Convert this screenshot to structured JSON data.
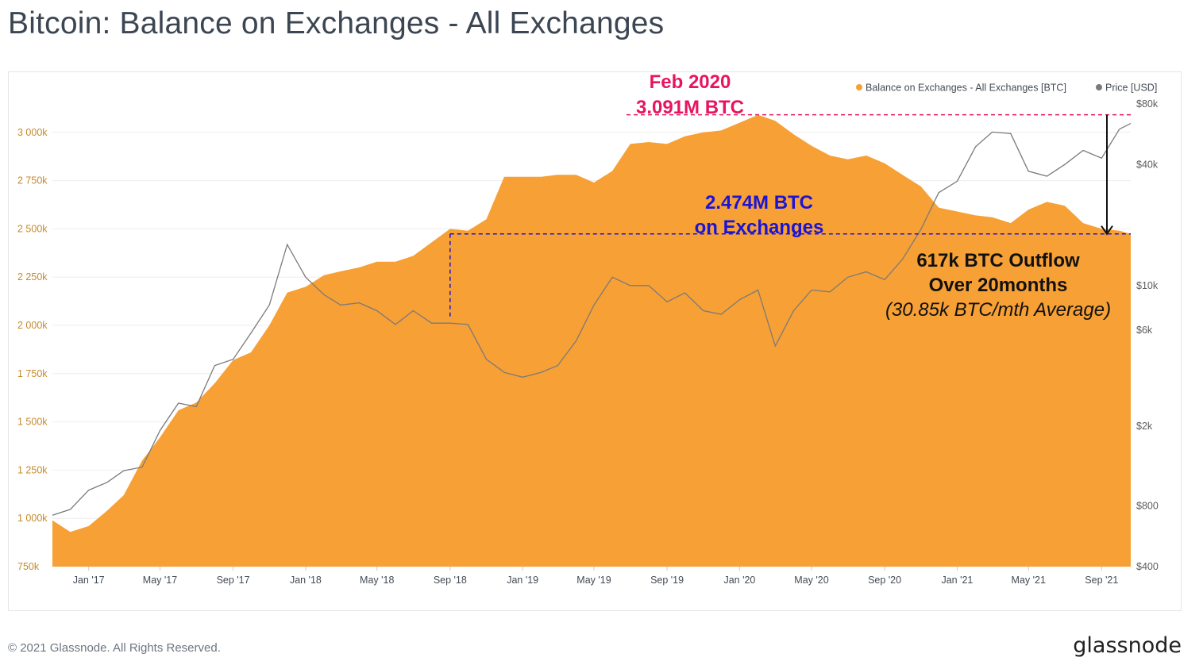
{
  "title": "Bitcoin: Balance on Exchanges - All Exchanges",
  "footer": {
    "copyright": "© 2021 Glassnode. All Rights Reserved.",
    "brand": "glassnode"
  },
  "watermark": "glassnode",
  "colors": {
    "balance": "#f7a035",
    "price": "#7a7a7a",
    "left_tick": "#c48a2a",
    "right_tick": "#5c5c5c",
    "peak_annotation": "#e8145f",
    "level_annotation": "#1a14d6",
    "outflow_annotation": "#111111"
  },
  "chart_data": {
    "type": "area",
    "legend": [
      {
        "name": "Balance on Exchanges - All Exchanges [BTC]",
        "color": "#f7a035"
      },
      {
        "name": "Price [USD]",
        "color": "#7a7a7a"
      }
    ],
    "legend_position": "top-right",
    "x_ticks": [
      "Jan '17",
      "May '17",
      "Sep '17",
      "Jan '18",
      "May '18",
      "Sep '18",
      "Jan '19",
      "May '19",
      "Sep '19",
      "Jan '20",
      "May '20",
      "Sep '20",
      "Jan '21",
      "May '21",
      "Sep '21"
    ],
    "x_range": [
      "2016-11-01",
      "2021-10-20"
    ],
    "y_left": {
      "ticks": [
        "750k",
        "1 000k",
        "1 250k",
        "1 500k",
        "1 750k",
        "2 000k",
        "2 250k",
        "2 500k",
        "2 750k",
        "3 000k"
      ],
      "range": [
        750000,
        3250000
      ]
    },
    "y_right": {
      "scale": "log",
      "ticks": [
        "$400",
        "$800",
        "$2k",
        "$6k",
        "$10k",
        "$40k",
        "$80k"
      ],
      "range": [
        400,
        80000
      ]
    },
    "series": [
      {
        "name": "Balance on Exchanges - All Exchanges [BTC]",
        "axis": "left",
        "points": [
          [
            "2016-11-01",
            990000
          ],
          [
            "2016-12-01",
            930000
          ],
          [
            "2017-01-01",
            960000
          ],
          [
            "2017-02-01",
            1040000
          ],
          [
            "2017-03-01",
            1120000
          ],
          [
            "2017-04-01",
            1300000
          ],
          [
            "2017-05-01",
            1420000
          ],
          [
            "2017-06-01",
            1560000
          ],
          [
            "2017-07-01",
            1600000
          ],
          [
            "2017-08-01",
            1700000
          ],
          [
            "2017-09-01",
            1820000
          ],
          [
            "2017-10-01",
            1860000
          ],
          [
            "2017-11-01",
            2000000
          ],
          [
            "2017-12-01",
            2170000
          ],
          [
            "2018-01-01",
            2200000
          ],
          [
            "2018-02-01",
            2260000
          ],
          [
            "2018-03-01",
            2280000
          ],
          [
            "2018-04-01",
            2300000
          ],
          [
            "2018-05-01",
            2330000
          ],
          [
            "2018-06-01",
            2330000
          ],
          [
            "2018-07-01",
            2360000
          ],
          [
            "2018-08-01",
            2430000
          ],
          [
            "2018-09-01",
            2500000
          ],
          [
            "2018-10-01",
            2490000
          ],
          [
            "2018-11-01",
            2550000
          ],
          [
            "2018-12-01",
            2770000
          ],
          [
            "2019-01-01",
            2770000
          ],
          [
            "2019-02-01",
            2770000
          ],
          [
            "2019-03-01",
            2780000
          ],
          [
            "2019-04-01",
            2780000
          ],
          [
            "2019-05-01",
            2740000
          ],
          [
            "2019-06-01",
            2800000
          ],
          [
            "2019-07-01",
            2940000
          ],
          [
            "2019-08-01",
            2950000
          ],
          [
            "2019-09-01",
            2940000
          ],
          [
            "2019-10-01",
            2980000
          ],
          [
            "2019-11-01",
            3000000
          ],
          [
            "2019-12-01",
            3010000
          ],
          [
            "2020-01-01",
            3050000
          ],
          [
            "2020-02-01",
            3091000
          ],
          [
            "2020-03-01",
            3060000
          ],
          [
            "2020-04-01",
            2990000
          ],
          [
            "2020-05-01",
            2930000
          ],
          [
            "2020-06-01",
            2880000
          ],
          [
            "2020-07-01",
            2860000
          ],
          [
            "2020-08-01",
            2880000
          ],
          [
            "2020-09-01",
            2840000
          ],
          [
            "2020-10-01",
            2780000
          ],
          [
            "2020-11-01",
            2720000
          ],
          [
            "2020-12-01",
            2610000
          ],
          [
            "2021-01-01",
            2590000
          ],
          [
            "2021-02-01",
            2570000
          ],
          [
            "2021-03-01",
            2560000
          ],
          [
            "2021-04-01",
            2530000
          ],
          [
            "2021-05-01",
            2600000
          ],
          [
            "2021-06-01",
            2640000
          ],
          [
            "2021-07-01",
            2620000
          ],
          [
            "2021-08-01",
            2530000
          ],
          [
            "2021-09-01",
            2500000
          ],
          [
            "2021-10-01",
            2490000
          ],
          [
            "2021-10-20",
            2474000
          ]
        ]
      },
      {
        "name": "Price [USD]",
        "axis": "right",
        "points": [
          [
            "2016-11-01",
            720
          ],
          [
            "2016-12-01",
            770
          ],
          [
            "2017-01-01",
            960
          ],
          [
            "2017-02-01",
            1050
          ],
          [
            "2017-03-01",
            1200
          ],
          [
            "2017-04-01",
            1250
          ],
          [
            "2017-05-01",
            1900
          ],
          [
            "2017-06-01",
            2600
          ],
          [
            "2017-07-01",
            2500
          ],
          [
            "2017-08-01",
            4000
          ],
          [
            "2017-09-01",
            4300
          ],
          [
            "2017-10-01",
            5800
          ],
          [
            "2017-11-01",
            8000
          ],
          [
            "2017-12-01",
            16000
          ],
          [
            "2018-01-01",
            11000
          ],
          [
            "2018-02-01",
            9000
          ],
          [
            "2018-03-01",
            8000
          ],
          [
            "2018-04-01",
            8200
          ],
          [
            "2018-05-01",
            7500
          ],
          [
            "2018-06-01",
            6400
          ],
          [
            "2018-07-01",
            7500
          ],
          [
            "2018-08-01",
            6500
          ],
          [
            "2018-09-01",
            6500
          ],
          [
            "2018-10-01",
            6400
          ],
          [
            "2018-11-01",
            4300
          ],
          [
            "2018-12-01",
            3700
          ],
          [
            "2019-01-01",
            3500
          ],
          [
            "2019-02-01",
            3700
          ],
          [
            "2019-03-01",
            4000
          ],
          [
            "2019-04-01",
            5300
          ],
          [
            "2019-05-01",
            8000
          ],
          [
            "2019-06-01",
            11000
          ],
          [
            "2019-07-01",
            10000
          ],
          [
            "2019-08-01",
            10000
          ],
          [
            "2019-09-01",
            8300
          ],
          [
            "2019-10-01",
            9200
          ],
          [
            "2019-11-01",
            7500
          ],
          [
            "2019-12-01",
            7200
          ],
          [
            "2020-01-01",
            8500
          ],
          [
            "2020-02-01",
            9500
          ],
          [
            "2020-03-01",
            5000
          ],
          [
            "2020-04-01",
            7500
          ],
          [
            "2020-05-01",
            9500
          ],
          [
            "2020-06-01",
            9300
          ],
          [
            "2020-07-01",
            11000
          ],
          [
            "2020-08-01",
            11700
          ],
          [
            "2020-09-01",
            10700
          ],
          [
            "2020-10-01",
            13500
          ],
          [
            "2020-11-01",
            19000
          ],
          [
            "2020-12-01",
            29000
          ],
          [
            "2021-01-01",
            33000
          ],
          [
            "2021-02-01",
            49000
          ],
          [
            "2021-03-01",
            58000
          ],
          [
            "2021-04-01",
            57000
          ],
          [
            "2021-05-01",
            37000
          ],
          [
            "2021-06-01",
            35000
          ],
          [
            "2021-07-01",
            40000
          ],
          [
            "2021-08-01",
            47000
          ],
          [
            "2021-09-01",
            43000
          ],
          [
            "2021-10-01",
            60000
          ],
          [
            "2021-10-20",
            64000
          ]
        ]
      }
    ],
    "annotations": {
      "peak": {
        "date_label": "Feb 2020",
        "value_label": "3.091M BTC",
        "value": 3091000
      },
      "current": {
        "line1": "2.474M BTC",
        "line2": "on Exchanges",
        "value": 2474000,
        "since": "2018-09-01"
      },
      "outflow": {
        "line1": "617k BTC Outflow",
        "line2": "Over 20months",
        "line3": "(30.85k BTC/mth Average)"
      }
    }
  }
}
